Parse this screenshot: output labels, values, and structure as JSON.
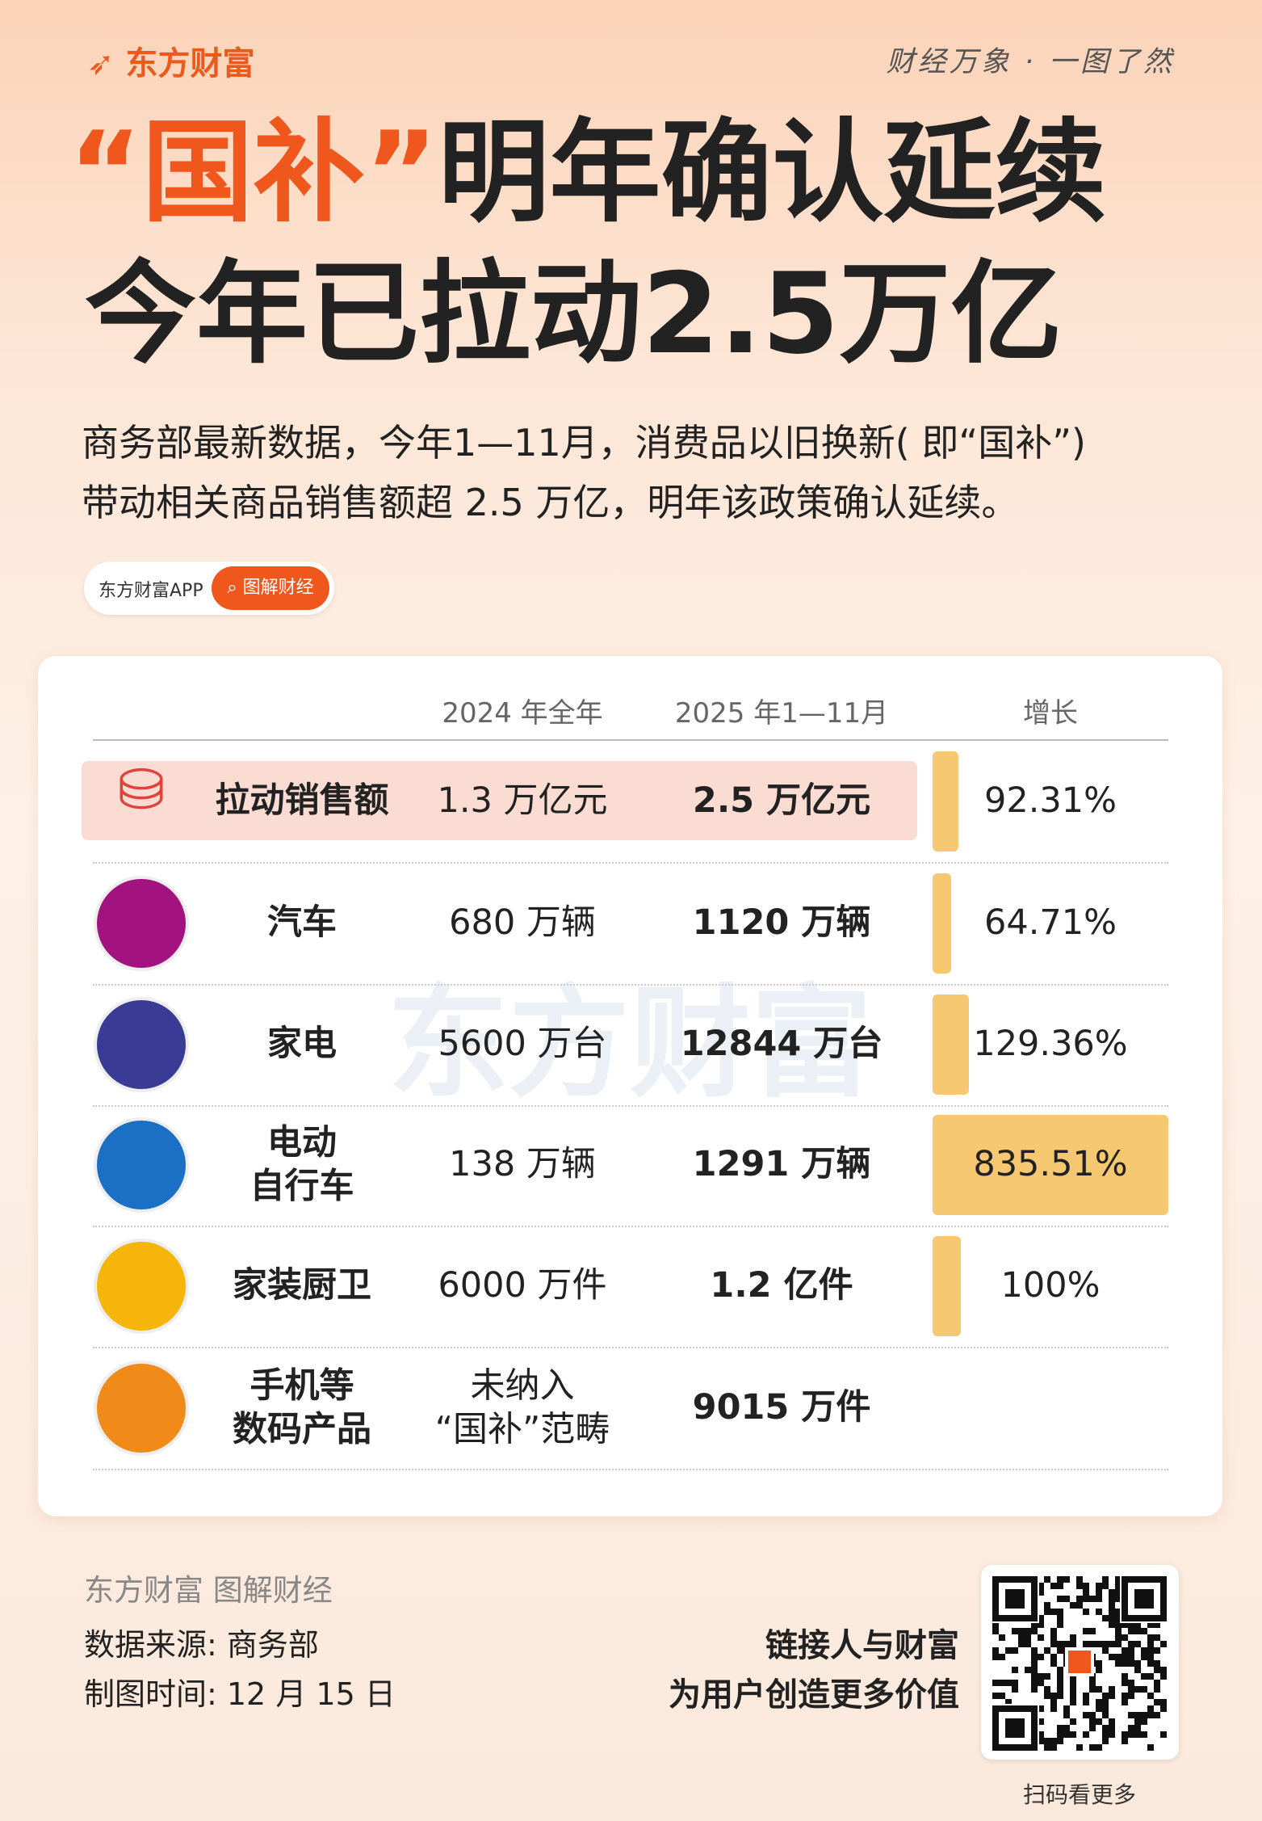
{
  "header": {
    "brand": "东方财富",
    "slogan": "财经万象 · 一图了然",
    "title_highlight": "“国补”",
    "title_rest": "明年确认延续",
    "title_line2": "今年已拉动2.5万亿",
    "subtitle": [
      "商务部最新数据，今年1—11月，消费品以旧换新( 即“国补”)",
      "带动相关商品销售额超 2.5 万亿，明年该政策确认延续。"
    ],
    "tag_app": "东方财富APP",
    "tag_search": "图解财经"
  },
  "table": {
    "columns": [
      "2024 年全年",
      "2025 年1—11月",
      "增长"
    ],
    "watermark": "东方财富",
    "bar_color": "#f7c872",
    "rows": [
      {
        "label": [
          "拉动销售额"
        ],
        "y2024": [
          "1.3 万亿元"
        ],
        "y2025": "2.5 万亿元",
        "growth": {
          "value": 92.31,
          "label": "92.31%"
        },
        "icon_color": "#e0433c"
      },
      {
        "label": [
          "汽车"
        ],
        "y2024": [
          "680 万辆"
        ],
        "y2025": "1120 万辆",
        "growth": {
          "value": 64.71,
          "label": "64.71%"
        },
        "icon_color": "#a3137f"
      },
      {
        "label": [
          "家电"
        ],
        "y2024": [
          "5600 万台"
        ],
        "y2025": "12844 万台",
        "growth": {
          "value": 129.36,
          "label": "129.36%"
        },
        "icon_color": "#3a3b94"
      },
      {
        "label": [
          "电动",
          "自行车"
        ],
        "y2024": [
          "138 万辆"
        ],
        "y2025": "1291 万辆",
        "growth": {
          "value": 835.51,
          "label": "835.51%"
        },
        "icon_color": "#1b70c6"
      },
      {
        "label": [
          "家装厨卫"
        ],
        "y2024": [
          "6000 万件"
        ],
        "y2025": "1.2 亿件",
        "growth": {
          "value": 100,
          "label": "100%"
        },
        "icon_color": "#f5b50a"
      },
      {
        "label": [
          "手机等",
          "数码产品"
        ],
        "y2024": [
          "未纳入",
          "“国补”范畴"
        ],
        "y2025": "9015 万件",
        "growth": null,
        "icon_color": "#f08a18"
      }
    ]
  },
  "footer": {
    "brand_line": "东方财富 图解财经",
    "source": "数据来源: 商务部",
    "date": "制图时间: 12 月 15 日",
    "motto": [
      "链接人与财富",
      "为用户创造更多价值"
    ],
    "qr_caption": "扫码看更多"
  }
}
